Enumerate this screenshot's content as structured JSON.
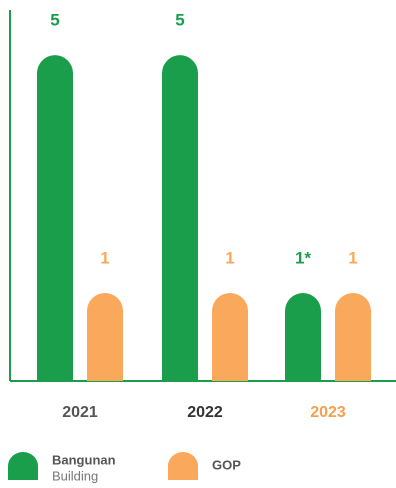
{
  "chart_data": {
    "type": "bar",
    "categories": [
      "2021",
      "2022",
      "2023"
    ],
    "category_colors": [
      "#555555",
      "#333333",
      "#f5a04e"
    ],
    "series": [
      {
        "name": "Bangunan",
        "subname": "Building",
        "color": "#1a9e4c",
        "values": [
          5,
          5,
          1
        ],
        "value_labels": [
          "5",
          "5",
          "1*"
        ]
      },
      {
        "name": "GOP",
        "color": "#f9a85c",
        "values": [
          1,
          1,
          1
        ],
        "value_labels": [
          "1",
          "1",
          "1"
        ]
      }
    ],
    "ylim": [
      -0.48,
      5.76
    ],
    "axis_color": "#1a9e4c"
  }
}
